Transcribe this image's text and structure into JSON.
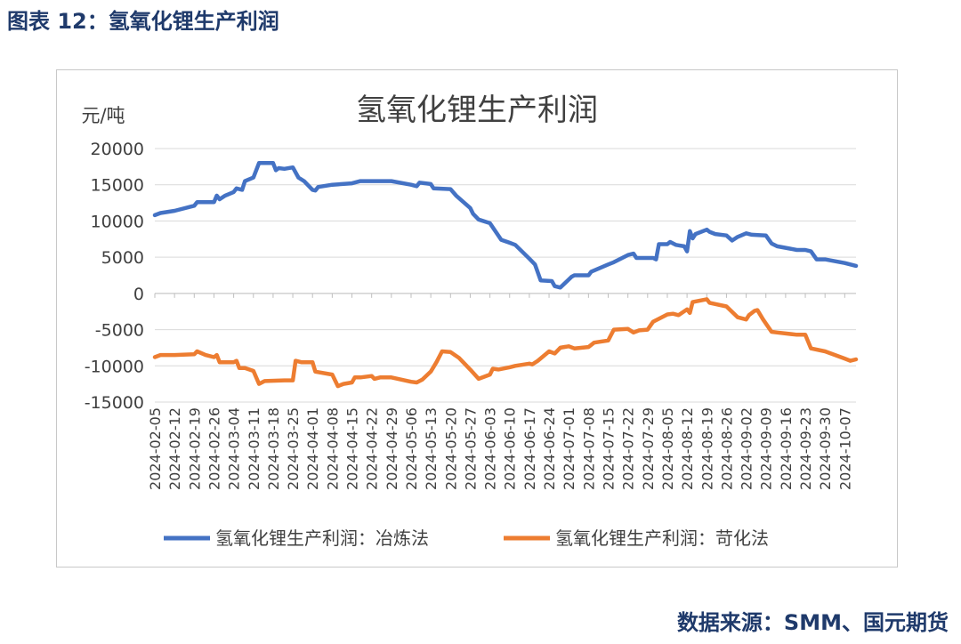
{
  "figure_caption": "图表 12：氢氧化锂生产利润",
  "source_note": "数据来源：SMM、国元期货",
  "chart_data": {
    "type": "line",
    "title": "氢氧化锂生产利润",
    "ylabel": "元/吨",
    "xlabel": "",
    "ylim": [
      -15000,
      20000
    ],
    "yticks": [
      20000,
      15000,
      10000,
      5000,
      0,
      -5000,
      -10000,
      -15000
    ],
    "ytick_labels": [
      "20000",
      "15000",
      "10000",
      "5000",
      "0",
      "-5000",
      "-10000",
      "-15000"
    ],
    "grid": "horizontal",
    "legend_position": "bottom",
    "x_labels": [
      "2024-02-05",
      "2024-02-12",
      "2024-02-19",
      "2024-02-26",
      "2024-03-04",
      "2024-03-11",
      "2024-03-18",
      "2024-03-25",
      "2024-04-01",
      "2024-04-08",
      "2024-04-15",
      "2024-04-22",
      "2024-04-29",
      "2024-05-06",
      "2024-05-13",
      "2024-05-20",
      "2024-05-27",
      "2024-06-03",
      "2024-06-10",
      "2024-06-17",
      "2024-06-24",
      "2024-07-01",
      "2024-07-08",
      "2024-07-15",
      "2024-07-22",
      "2024-07-29",
      "2024-08-05",
      "2024-08-12",
      "2024-08-19",
      "2024-08-26",
      "2024-09-02",
      "2024-09-09",
      "2024-09-16",
      "2024-09-23",
      "2024-09-30",
      "2024-10-07"
    ],
    "x_range": [
      "2024-02-05",
      "2024-10-11"
    ],
    "series": [
      {
        "name": "氢氧化锂生产利润：冶炼法",
        "color": "#4472c4",
        "points": [
          [
            "2024-02-05",
            10800
          ],
          [
            "2024-02-07",
            11100
          ],
          [
            "2024-02-12",
            11400
          ],
          [
            "2024-02-19",
            12100
          ],
          [
            "2024-02-20",
            12600
          ],
          [
            "2024-02-26",
            12600
          ],
          [
            "2024-02-27",
            13500
          ],
          [
            "2024-02-28",
            13000
          ],
          [
            "2024-03-01",
            13500
          ],
          [
            "2024-03-04",
            14000
          ],
          [
            "2024-03-05",
            14500
          ],
          [
            "2024-03-07",
            14300
          ],
          [
            "2024-03-08",
            15500
          ],
          [
            "2024-03-11",
            16000
          ],
          [
            "2024-03-13",
            18000
          ],
          [
            "2024-03-18",
            18000
          ],
          [
            "2024-03-19",
            17000
          ],
          [
            "2024-03-20",
            17300
          ],
          [
            "2024-03-22",
            17200
          ],
          [
            "2024-03-25",
            17400
          ],
          [
            "2024-03-27",
            16000
          ],
          [
            "2024-03-29",
            15500
          ],
          [
            "2024-04-01",
            14300
          ],
          [
            "2024-04-02",
            14200
          ],
          [
            "2024-04-03",
            14700
          ],
          [
            "2024-04-08",
            15000
          ],
          [
            "2024-04-15",
            15200
          ],
          [
            "2024-04-18",
            15500
          ],
          [
            "2024-04-29",
            15500
          ],
          [
            "2024-05-06",
            15000
          ],
          [
            "2024-05-08",
            14800
          ],
          [
            "2024-05-09",
            15300
          ],
          [
            "2024-05-13",
            15100
          ],
          [
            "2024-05-14",
            14500
          ],
          [
            "2024-05-20",
            14400
          ],
          [
            "2024-05-22",
            13500
          ],
          [
            "2024-05-27",
            11800
          ],
          [
            "2024-05-28",
            11000
          ],
          [
            "2024-05-30",
            10200
          ],
          [
            "2024-06-03",
            9700
          ],
          [
            "2024-06-07",
            7400
          ],
          [
            "2024-06-10",
            7000
          ],
          [
            "2024-06-12",
            6700
          ],
          [
            "2024-06-17",
            4800
          ],
          [
            "2024-06-19",
            4000
          ],
          [
            "2024-06-21",
            1800
          ],
          [
            "2024-06-25",
            1700
          ],
          [
            "2024-06-26",
            1000
          ],
          [
            "2024-06-28",
            800
          ],
          [
            "2024-07-02",
            2300
          ],
          [
            "2024-07-03",
            2500
          ],
          [
            "2024-07-08",
            2500
          ],
          [
            "2024-07-09",
            3000
          ],
          [
            "2024-07-15",
            4000
          ],
          [
            "2024-07-17",
            4300
          ],
          [
            "2024-07-22",
            5300
          ],
          [
            "2024-07-24",
            5500
          ],
          [
            "2024-07-25",
            4900
          ],
          [
            "2024-07-31",
            4900
          ],
          [
            "2024-08-01",
            4700
          ],
          [
            "2024-08-02",
            6800
          ],
          [
            "2024-08-05",
            6800
          ],
          [
            "2024-08-06",
            7100
          ],
          [
            "2024-08-08",
            6700
          ],
          [
            "2024-08-11",
            6500
          ],
          [
            "2024-08-12",
            5800
          ],
          [
            "2024-08-13",
            8600
          ],
          [
            "2024-08-14",
            7600
          ],
          [
            "2024-08-15",
            8200
          ],
          [
            "2024-08-19",
            8800
          ],
          [
            "2024-08-20",
            8500
          ],
          [
            "2024-08-22",
            8200
          ],
          [
            "2024-08-26",
            8000
          ],
          [
            "2024-08-28",
            7300
          ],
          [
            "2024-08-30",
            7800
          ],
          [
            "2024-09-02",
            8300
          ],
          [
            "2024-09-04",
            8100
          ],
          [
            "2024-09-09",
            8000
          ],
          [
            "2024-09-11",
            6900
          ],
          [
            "2024-09-13",
            6500
          ],
          [
            "2024-09-16",
            6300
          ],
          [
            "2024-09-20",
            6000
          ],
          [
            "2024-09-23",
            6000
          ],
          [
            "2024-09-25",
            5800
          ],
          [
            "2024-09-27",
            4700
          ],
          [
            "2024-09-30",
            4700
          ],
          [
            "2024-10-07",
            4200
          ],
          [
            "2024-10-11",
            3800
          ]
        ]
      },
      {
        "name": "氢氧化锂生产利润：苛化法",
        "color": "#ed7d31",
        "points": [
          [
            "2024-02-05",
            -8800
          ],
          [
            "2024-02-07",
            -8500
          ],
          [
            "2024-02-12",
            -8500
          ],
          [
            "2024-02-19",
            -8400
          ],
          [
            "2024-02-20",
            -8000
          ],
          [
            "2024-02-23",
            -8500
          ],
          [
            "2024-02-26",
            -8800
          ],
          [
            "2024-02-27",
            -8500
          ],
          [
            "2024-02-28",
            -9500
          ],
          [
            "2024-03-04",
            -9500
          ],
          [
            "2024-03-05",
            -9300
          ],
          [
            "2024-03-06",
            -10300
          ],
          [
            "2024-03-08",
            -10300
          ],
          [
            "2024-03-11",
            -10700
          ],
          [
            "2024-03-13",
            -12500
          ],
          [
            "2024-03-15",
            -12100
          ],
          [
            "2024-03-22",
            -12000
          ],
          [
            "2024-03-25",
            -12000
          ],
          [
            "2024-03-26",
            -9300
          ],
          [
            "2024-03-28",
            -9500
          ],
          [
            "2024-04-01",
            -9500
          ],
          [
            "2024-04-02",
            -10800
          ],
          [
            "2024-04-08",
            -11200
          ],
          [
            "2024-04-10",
            -12800
          ],
          [
            "2024-04-12",
            -12500
          ],
          [
            "2024-04-15",
            -12300
          ],
          [
            "2024-04-16",
            -11600
          ],
          [
            "2024-04-18",
            -11600
          ],
          [
            "2024-04-22",
            -11400
          ],
          [
            "2024-04-23",
            -11800
          ],
          [
            "2024-04-25",
            -11600
          ],
          [
            "2024-04-29",
            -11600
          ],
          [
            "2024-05-06",
            -12200
          ],
          [
            "2024-05-08",
            -12300
          ],
          [
            "2024-05-10",
            -11900
          ],
          [
            "2024-05-13",
            -10800
          ],
          [
            "2024-05-15",
            -9500
          ],
          [
            "2024-05-17",
            -8000
          ],
          [
            "2024-05-20",
            -8100
          ],
          [
            "2024-05-23",
            -8900
          ],
          [
            "2024-05-27",
            -10500
          ],
          [
            "2024-05-30",
            -11800
          ],
          [
            "2024-06-01",
            -11500
          ],
          [
            "2024-06-03",
            -11200
          ],
          [
            "2024-06-04",
            -10400
          ],
          [
            "2024-06-06",
            -10500
          ],
          [
            "2024-06-10",
            -10200
          ],
          [
            "2024-06-12",
            -10000
          ],
          [
            "2024-06-17",
            -9700
          ],
          [
            "2024-06-18",
            -9800
          ],
          [
            "2024-06-20",
            -9300
          ],
          [
            "2024-06-24",
            -8000
          ],
          [
            "2024-06-26",
            -8300
          ],
          [
            "2024-06-28",
            -7500
          ],
          [
            "2024-07-01",
            -7300
          ],
          [
            "2024-07-03",
            -7600
          ],
          [
            "2024-07-08",
            -7400
          ],
          [
            "2024-07-10",
            -6800
          ],
          [
            "2024-07-15",
            -6500
          ],
          [
            "2024-07-17",
            -5000
          ],
          [
            "2024-07-22",
            -4900
          ],
          [
            "2024-07-24",
            -5400
          ],
          [
            "2024-07-26",
            -5100
          ],
          [
            "2024-07-29",
            -5000
          ],
          [
            "2024-07-31",
            -3900
          ],
          [
            "2024-08-02",
            -3500
          ],
          [
            "2024-08-05",
            -2900
          ],
          [
            "2024-08-07",
            -2800
          ],
          [
            "2024-08-09",
            -3000
          ],
          [
            "2024-08-12",
            -2200
          ],
          [
            "2024-08-13",
            -2700
          ],
          [
            "2024-08-14",
            -1200
          ],
          [
            "2024-08-19",
            -800
          ],
          [
            "2024-08-20",
            -1300
          ],
          [
            "2024-08-26",
            -1800
          ],
          [
            "2024-08-30",
            -3300
          ],
          [
            "2024-09-02",
            -3600
          ],
          [
            "2024-09-03",
            -3000
          ],
          [
            "2024-09-05",
            -2400
          ],
          [
            "2024-09-06",
            -2300
          ],
          [
            "2024-09-08",
            -3600
          ],
          [
            "2024-09-11",
            -5300
          ],
          [
            "2024-09-13",
            -5400
          ],
          [
            "2024-09-20",
            -5700
          ],
          [
            "2024-09-23",
            -5700
          ],
          [
            "2024-09-25",
            -7600
          ],
          [
            "2024-09-30",
            -8000
          ],
          [
            "2024-10-07",
            -9000
          ],
          [
            "2024-10-09",
            -9300
          ],
          [
            "2024-10-11",
            -9100
          ]
        ]
      }
    ]
  }
}
